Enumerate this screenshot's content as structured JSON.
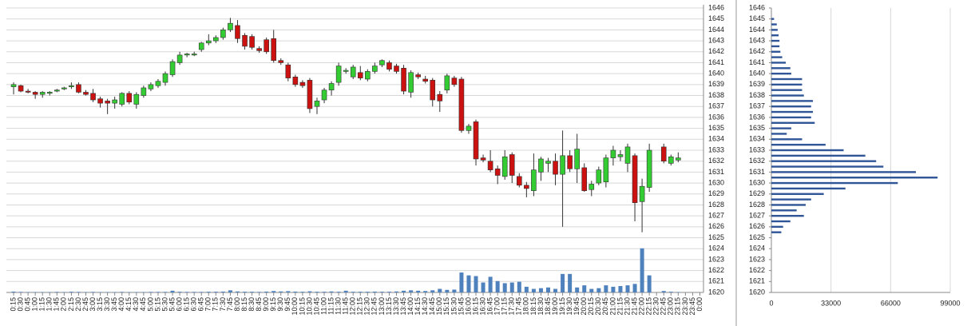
{
  "chart_data": [
    {
      "type": "candlestick",
      "categories": [
        "0:15",
        "0:30",
        "0:45",
        "1:00",
        "1:15",
        "1:30",
        "1:45",
        "2:00",
        "2:15",
        "2:30",
        "2:45",
        "3:00",
        "3:15",
        "3:30",
        "3:45",
        "4:00",
        "4:15",
        "4:30",
        "4:45",
        "5:00",
        "5:15",
        "5:30",
        "5:45",
        "6:00",
        "6:15",
        "6:30",
        "6:45",
        "7:00",
        "7:15",
        "7:30",
        "7:45",
        "8:00",
        "8:15",
        "8:30",
        "8:45",
        "9:00",
        "9:15",
        "9:30",
        "9:45",
        "10:00",
        "10:15",
        "10:30",
        "10:45",
        "11:00",
        "11:15",
        "11:30",
        "11:45",
        "12:00",
        "12:15",
        "12:30",
        "12:45",
        "13:00",
        "13:15",
        "13:30",
        "13:45",
        "14:00",
        "14:15",
        "14:30",
        "14:45",
        "15:00",
        "15:15",
        "15:30",
        "15:45",
        "16:00",
        "16:15",
        "16:30",
        "16:45",
        "17:00",
        "17:15",
        "17:30",
        "17:45",
        "18:00",
        "18:15",
        "18:30",
        "18:45",
        "19:00",
        "19:15",
        "19:30",
        "19:45",
        "20:00",
        "20:15",
        "20:30",
        "20:45",
        "21:00",
        "21:15",
        "21:30",
        "21:45",
        "22:00",
        "22:15",
        "22:30",
        "22:45",
        "23:00",
        "23:15",
        "23:30",
        "23:45",
        "0:00"
      ],
      "open": [
        1638.8,
        1638.9,
        1638.4,
        1638.3,
        1638.1,
        1638.2,
        1638.4,
        1638.6,
        1638.8,
        1639.0,
        1638.3,
        1638.2,
        1637.7,
        1637.5,
        1637.3,
        1637.2,
        1638.2,
        1637.2,
        1638.0,
        1638.6,
        1638.9,
        1639.2,
        1639.9,
        1641.0,
        1641.7,
        1641.7,
        1642.2,
        1642.8,
        1643.0,
        1643.3,
        1644.0,
        1644.4,
        1643.5,
        1643.4,
        1642.3,
        1643.1,
        1643.2,
        1641.2,
        1640.8,
        1639.7,
        1639.2,
        1639.4,
        1637.0,
        1637.6,
        1638.5,
        1639.2,
        1640.2,
        1639.7,
        1640.1,
        1639.5,
        1640.2,
        1640.8,
        1641.0,
        1640.7,
        1640.5,
        1638.3,
        1639.9,
        1639.5,
        1639.4,
        1638.1,
        1638.5,
        1639.6,
        1639.5,
        1634.8,
        1635.6,
        1632.3,
        1632.0,
        1631.3,
        1630.6,
        1632.6,
        1630.6,
        1629.8,
        1629.3,
        1631.0,
        1631.8,
        1632.0,
        1630.8,
        1632.5,
        1631.3,
        1631.4,
        1629.4,
        1630.0,
        1630.1,
        1632.3,
        1632.4,
        1631.8,
        1632.5,
        1628.3,
        1629.6,
        null,
        1633.3,
        1631.8,
        1632.1,
        null,
        null,
        null
      ],
      "high": [
        1639.2,
        1639.0,
        1638.6,
        1638.4,
        1638.4,
        1638.4,
        1638.6,
        1638.8,
        1639.2,
        1639.2,
        1638.5,
        1638.6,
        1637.9,
        1637.7,
        1637.9,
        1638.3,
        1638.4,
        1638.3,
        1638.9,
        1639.2,
        1639.5,
        1640.2,
        1641.3,
        1642.0,
        1641.9,
        1642.0,
        1642.9,
        1643.6,
        1643.5,
        1644.2,
        1645.1,
        1644.9,
        1643.7,
        1643.6,
        1642.5,
        1643.3,
        1644.0,
        1641.4,
        1641.0,
        1639.9,
        1639.4,
        1639.6,
        1637.8,
        1638.7,
        1639.3,
        1641.0,
        1640.5,
        1640.8,
        1640.7,
        1640.4,
        1641.0,
        1641.3,
        1641.2,
        1640.9,
        1640.8,
        1640.3,
        1640.1,
        1639.8,
        1639.6,
        1638.4,
        1640.0,
        1639.8,
        1639.7,
        1635.4,
        1635.8,
        1632.6,
        1633.0,
        1631.6,
        1633.0,
        1632.8,
        1630.9,
        1630.1,
        1632.7,
        1632.4,
        1632.3,
        1632.7,
        1634.8,
        1633.0,
        1634.5,
        1631.8,
        1630.2,
        1631.5,
        1632.6,
        1633.4,
        1633.0,
        1633.6,
        1632.7,
        1630.4,
        1633.6,
        null,
        1633.6,
        1632.6,
        1632.8,
        null,
        null,
        null
      ],
      "low": [
        1638.1,
        1638.3,
        1638.2,
        1637.7,
        1637.8,
        1638.0,
        1638.3,
        1638.5,
        1638.6,
        1638.2,
        1638.0,
        1637.4,
        1636.9,
        1636.3,
        1636.8,
        1637.0,
        1637.2,
        1636.8,
        1637.8,
        1638.4,
        1638.7,
        1638.9,
        1639.7,
        1640.8,
        1641.5,
        1641.6,
        1642.0,
        1642.6,
        1642.8,
        1643.1,
        1643.8,
        1642.8,
        1642.2,
        1642.2,
        1641.9,
        1641.8,
        1641.0,
        1640.8,
        1639.3,
        1638.8,
        1638.7,
        1636.4,
        1636.3,
        1637.3,
        1638.0,
        1638.9,
        1640.0,
        1639.5,
        1639.4,
        1639.3,
        1640.0,
        1640.6,
        1640.2,
        1640.0,
        1638.1,
        1637.8,
        1639.5,
        1639.1,
        1637.0,
        1636.5,
        1638.2,
        1638.8,
        1634.6,
        1634.5,
        1631.6,
        1631.9,
        1631.0,
        1629.9,
        1630.3,
        1630.0,
        1629.6,
        1628.7,
        1628.8,
        1630.2,
        1631.0,
        1629.8,
        1626.0,
        1631.0,
        1630.0,
        1629.2,
        1628.8,
        1629.8,
        1629.6,
        1631.6,
        1632.0,
        1631.0,
        1626.5,
        1625.5,
        1629.2,
        null,
        1631.8,
        1631.6,
        1631.9,
        null,
        null,
        null
      ],
      "close": [
        1639.0,
        1638.4,
        1638.3,
        1638.1,
        1638.3,
        1638.3,
        1638.5,
        1638.7,
        1638.9,
        1638.3,
        1638.1,
        1637.6,
        1637.3,
        1637.3,
        1637.6,
        1638.2,
        1637.4,
        1638.1,
        1638.7,
        1639.0,
        1639.3,
        1640.0,
        1641.1,
        1641.7,
        1641.8,
        1641.8,
        1642.8,
        1643.0,
        1643.3,
        1644.0,
        1644.6,
        1643.2,
        1642.5,
        1642.4,
        1642.1,
        1642.0,
        1641.2,
        1641.0,
        1639.6,
        1639.0,
        1638.9,
        1636.8,
        1637.5,
        1638.5,
        1639.1,
        1640.7,
        1640.3,
        1640.6,
        1639.6,
        1640.2,
        1640.7,
        1641.2,
        1640.4,
        1640.2,
        1638.4,
        1640.1,
        1639.7,
        1639.3,
        1637.6,
        1637.5,
        1639.8,
        1639.0,
        1634.8,
        1635.2,
        1632.2,
        1632.1,
        1631.2,
        1630.7,
        1632.4,
        1630.7,
        1629.8,
        1629.5,
        1631.2,
        1632.2,
        1632.0,
        1630.8,
        1632.5,
        1631.3,
        1633.1,
        1629.3,
        1629.9,
        1631.2,
        1632.3,
        1633.0,
        1632.6,
        1633.3,
        1628.2,
        1629.7,
        1633.0,
        null,
        1632.0,
        1632.4,
        1632.3,
        null,
        null,
        null
      ],
      "volume": [
        600,
        400,
        300,
        300,
        300,
        300,
        400,
        300,
        500,
        400,
        300,
        400,
        300,
        300,
        300,
        400,
        300,
        300,
        300,
        400,
        400,
        400,
        1200,
        500,
        400,
        400,
        400,
        500,
        500,
        600,
        1500,
        700,
        500,
        500,
        400,
        600,
        1000,
        700,
        900,
        600,
        500,
        800,
        500,
        500,
        700,
        500,
        1200,
        500,
        500,
        500,
        600,
        500,
        500,
        700,
        1200,
        1500,
        1200,
        1000,
        1500,
        2500,
        1800,
        2000,
        14000,
        12000,
        11500,
        7000,
        11000,
        8000,
        6500,
        7000,
        7500,
        4000,
        2500,
        3000,
        3500,
        2500,
        13000,
        13000,
        3500,
        5000,
        2500,
        3000,
        5000,
        4000,
        4500,
        5000,
        6000,
        31000,
        12000,
        null,
        1000,
        500,
        300,
        null,
        null,
        null
      ],
      "up_color": "#33cc33",
      "down_color": "#cc1111",
      "volume_color": "#4f81bd",
      "ylim": [
        1620,
        1646
      ],
      "yticks": [
        1620,
        1621,
        1622,
        1623,
        1624,
        1625,
        1626,
        1627,
        1628,
        1629,
        1630,
        1631,
        1632,
        1633,
        1634,
        1635,
        1636,
        1637,
        1638,
        1639,
        1640,
        1641,
        1642,
        1643,
        1644,
        1645,
        1646
      ],
      "volume_ylim": [
        0,
        200000
      ],
      "grid": true
    },
    {
      "type": "barh",
      "y": [
        1625.5,
        1626,
        1626.5,
        1627,
        1627.5,
        1628,
        1628.5,
        1629,
        1629.5,
        1630,
        1630.5,
        1631,
        1631.5,
        1632,
        1632.5,
        1633,
        1633.5,
        1634,
        1634.5,
        1635,
        1635.5,
        1636,
        1636.5,
        1637,
        1637.5,
        1638,
        1638.5,
        1639,
        1639.5,
        1640,
        1640.5,
        1641,
        1641.5,
        1642,
        1642.5,
        1643,
        1643.5,
        1644,
        1644.5,
        1645
      ],
      "values": [
        5500,
        6500,
        10500,
        18000,
        14000,
        19000,
        22000,
        29000,
        41000,
        70000,
        92000,
        80000,
        62000,
        58000,
        52000,
        40000,
        30000,
        17000,
        8500,
        11000,
        24000,
        22000,
        23000,
        22000,
        23000,
        18000,
        17000,
        17000,
        17000,
        11000,
        10500,
        8000,
        6000,
        5000,
        4500,
        4500,
        4000,
        3500,
        3000,
        1500
      ],
      "color": "#2f5597",
      "xlim": [
        0,
        99000
      ],
      "xticks": [
        0,
        33000,
        66000,
        99000
      ],
      "ylim": [
        1620,
        1646
      ],
      "yticks": [
        1620,
        1621,
        1622,
        1623,
        1624,
        1625,
        1626,
        1627,
        1628,
        1629,
        1630,
        1631,
        1632,
        1633,
        1634,
        1635,
        1636,
        1637,
        1638,
        1639,
        1640,
        1641,
        1642,
        1643,
        1644,
        1645,
        1646
      ],
      "grid": true
    }
  ]
}
